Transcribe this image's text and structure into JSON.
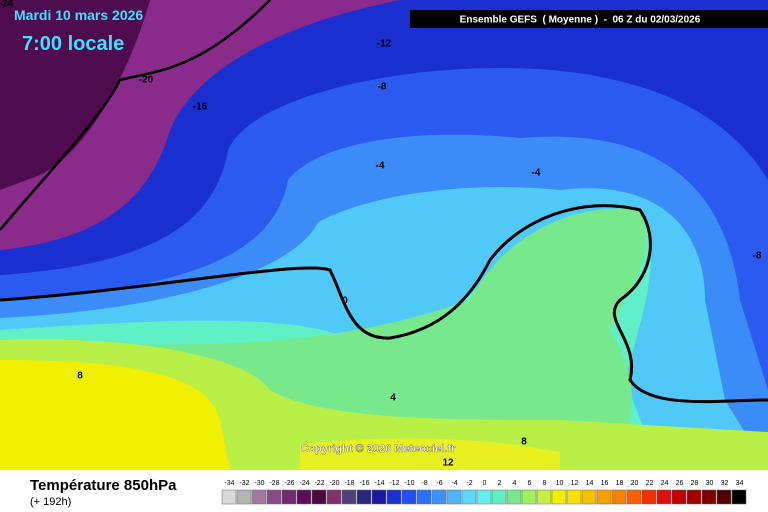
{
  "header": {
    "date": "Mardi 10 mars 2026",
    "time": "7:00 locale",
    "model": "Ensemble GEFS  ( Moyenne )  -  06 Z du 02/03/2026"
  },
  "map": {
    "copyright": "Copyright © 2026 Meteociel.fr",
    "contour_labels": [
      -24,
      -20,
      -16,
      -12,
      -8,
      -4,
      -4,
      -8,
      0,
      8,
      4,
      8,
      12
    ]
  },
  "footer": {
    "title": "Température 850hPa",
    "lead_time": "(+ 192h)"
  },
  "legend": {
    "items": [
      {
        "label": -34,
        "color": "#d8d8d8"
      },
      {
        "label": -32,
        "color": "#b4b4b4"
      },
      {
        "label": -30,
        "color": "#a07aa0"
      },
      {
        "label": -28,
        "color": "#8a4a8a"
      },
      {
        "label": -26,
        "color": "#702a70"
      },
      {
        "label": -24,
        "color": "#5a105a"
      },
      {
        "label": -22,
        "color": "#4a0a3a"
      },
      {
        "label": -20,
        "color": "#80306a"
      },
      {
        "label": -18,
        "color": "#50407a"
      },
      {
        "label": -16,
        "color": "#28287a"
      },
      {
        "label": -14,
        "color": "#1a1aa0"
      },
      {
        "label": -12,
        "color": "#1a30d0"
      },
      {
        "label": -10,
        "color": "#2050f0"
      },
      {
        "label": -8,
        "color": "#2a70f8"
      },
      {
        "label": -6,
        "color": "#3c90f8"
      },
      {
        "label": -4,
        "color": "#50b4f8"
      },
      {
        "label": -2,
        "color": "#5ad8f8"
      },
      {
        "label": 0,
        "color": "#60f0f0"
      },
      {
        "label": 2,
        "color": "#60f0c0"
      },
      {
        "label": 4,
        "color": "#78e890"
      },
      {
        "label": 6,
        "color": "#a0f060"
      },
      {
        "label": 8,
        "color": "#c8f040"
      },
      {
        "label": 10,
        "color": "#f0f000"
      },
      {
        "label": 12,
        "color": "#f8e000"
      },
      {
        "label": 14,
        "color": "#f8c000"
      },
      {
        "label": 16,
        "color": "#f8a000"
      },
      {
        "label": 18,
        "color": "#f88000"
      },
      {
        "label": 20,
        "color": "#f86000"
      },
      {
        "label": 22,
        "color": "#f03000"
      },
      {
        "label": 24,
        "color": "#e01010"
      },
      {
        "label": 26,
        "color": "#c00000"
      },
      {
        "label": 28,
        "color": "#a00000"
      },
      {
        "label": 30,
        "color": "#800000"
      },
      {
        "label": 32,
        "color": "#500000"
      },
      {
        "label": 34,
        "color": "#000000"
      }
    ]
  }
}
